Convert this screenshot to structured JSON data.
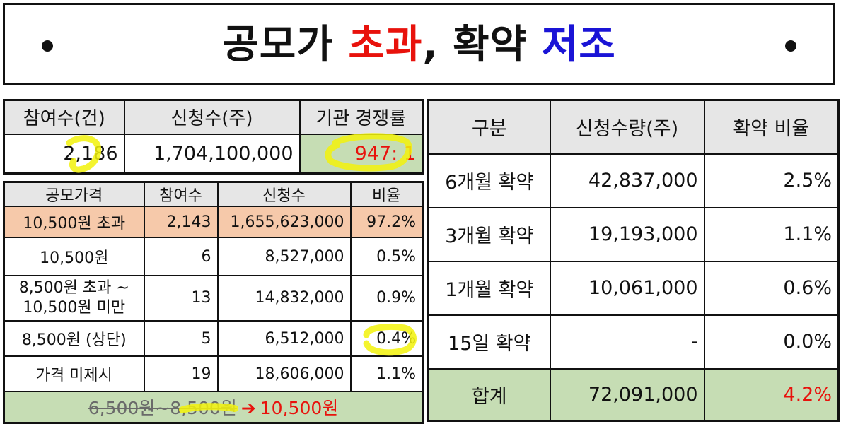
{
  "title": {
    "part1": "공모가 ",
    "part2": "초과",
    "part3": ", 확약 ",
    "part4": "저조"
  },
  "summary": {
    "headers": [
      "참여수(건)",
      "신청수(주)",
      "기관 경쟁률"
    ],
    "values": [
      "2,186",
      "1,704,100,000",
      "947: 1"
    ]
  },
  "price_table": {
    "headers": [
      "공모가격",
      "참여수",
      "신청수",
      "비율"
    ],
    "rows": [
      {
        "label": "10,500원 초과",
        "count": "2,143",
        "shares": "1,655,623,000",
        "ratio": "97.2%"
      },
      {
        "label": "10,500원",
        "count": "6",
        "shares": "8,527,000",
        "ratio": "0.5%"
      },
      {
        "label": "8,500원 초과 ~ 10,500원 미만",
        "count": "13",
        "shares": "14,832,000",
        "ratio": "0.9%"
      },
      {
        "label": "8,500원 (상단)",
        "count": "5",
        "shares": "6,512,000",
        "ratio": "0.4%"
      },
      {
        "label": "가격 미제시",
        "count": "19",
        "shares": "18,606,000",
        "ratio": "1.1%"
      }
    ],
    "footer": {
      "old_range": "6,500원~8,500원",
      "arrow": "➔",
      "new_price": "10,500원"
    }
  },
  "lockup_table": {
    "headers": [
      "구분",
      "신청수량(주)",
      "확약 비율"
    ],
    "rows": [
      {
        "label": "6개월 확약",
        "shares": "42,837,000",
        "ratio": "2.5%"
      },
      {
        "label": "3개월 확약",
        "shares": "19,193,000",
        "ratio": "1.1%"
      },
      {
        "label": "1개월 확약",
        "shares": "10,061,000",
        "ratio": "0.6%"
      },
      {
        "label": "15일 확약",
        "shares": "-",
        "ratio": "0.0%"
      }
    ],
    "total": {
      "label": "합계",
      "shares": "72,091,000",
      "ratio": "4.2%"
    }
  },
  "colors": {
    "red": "#e8120c",
    "blue": "#1a14d6",
    "green_fill": "#c6ddb4",
    "orange_fill": "#f6c9aa",
    "header_fill": "#e6e6e6",
    "highlighter": "#f2f20a"
  }
}
